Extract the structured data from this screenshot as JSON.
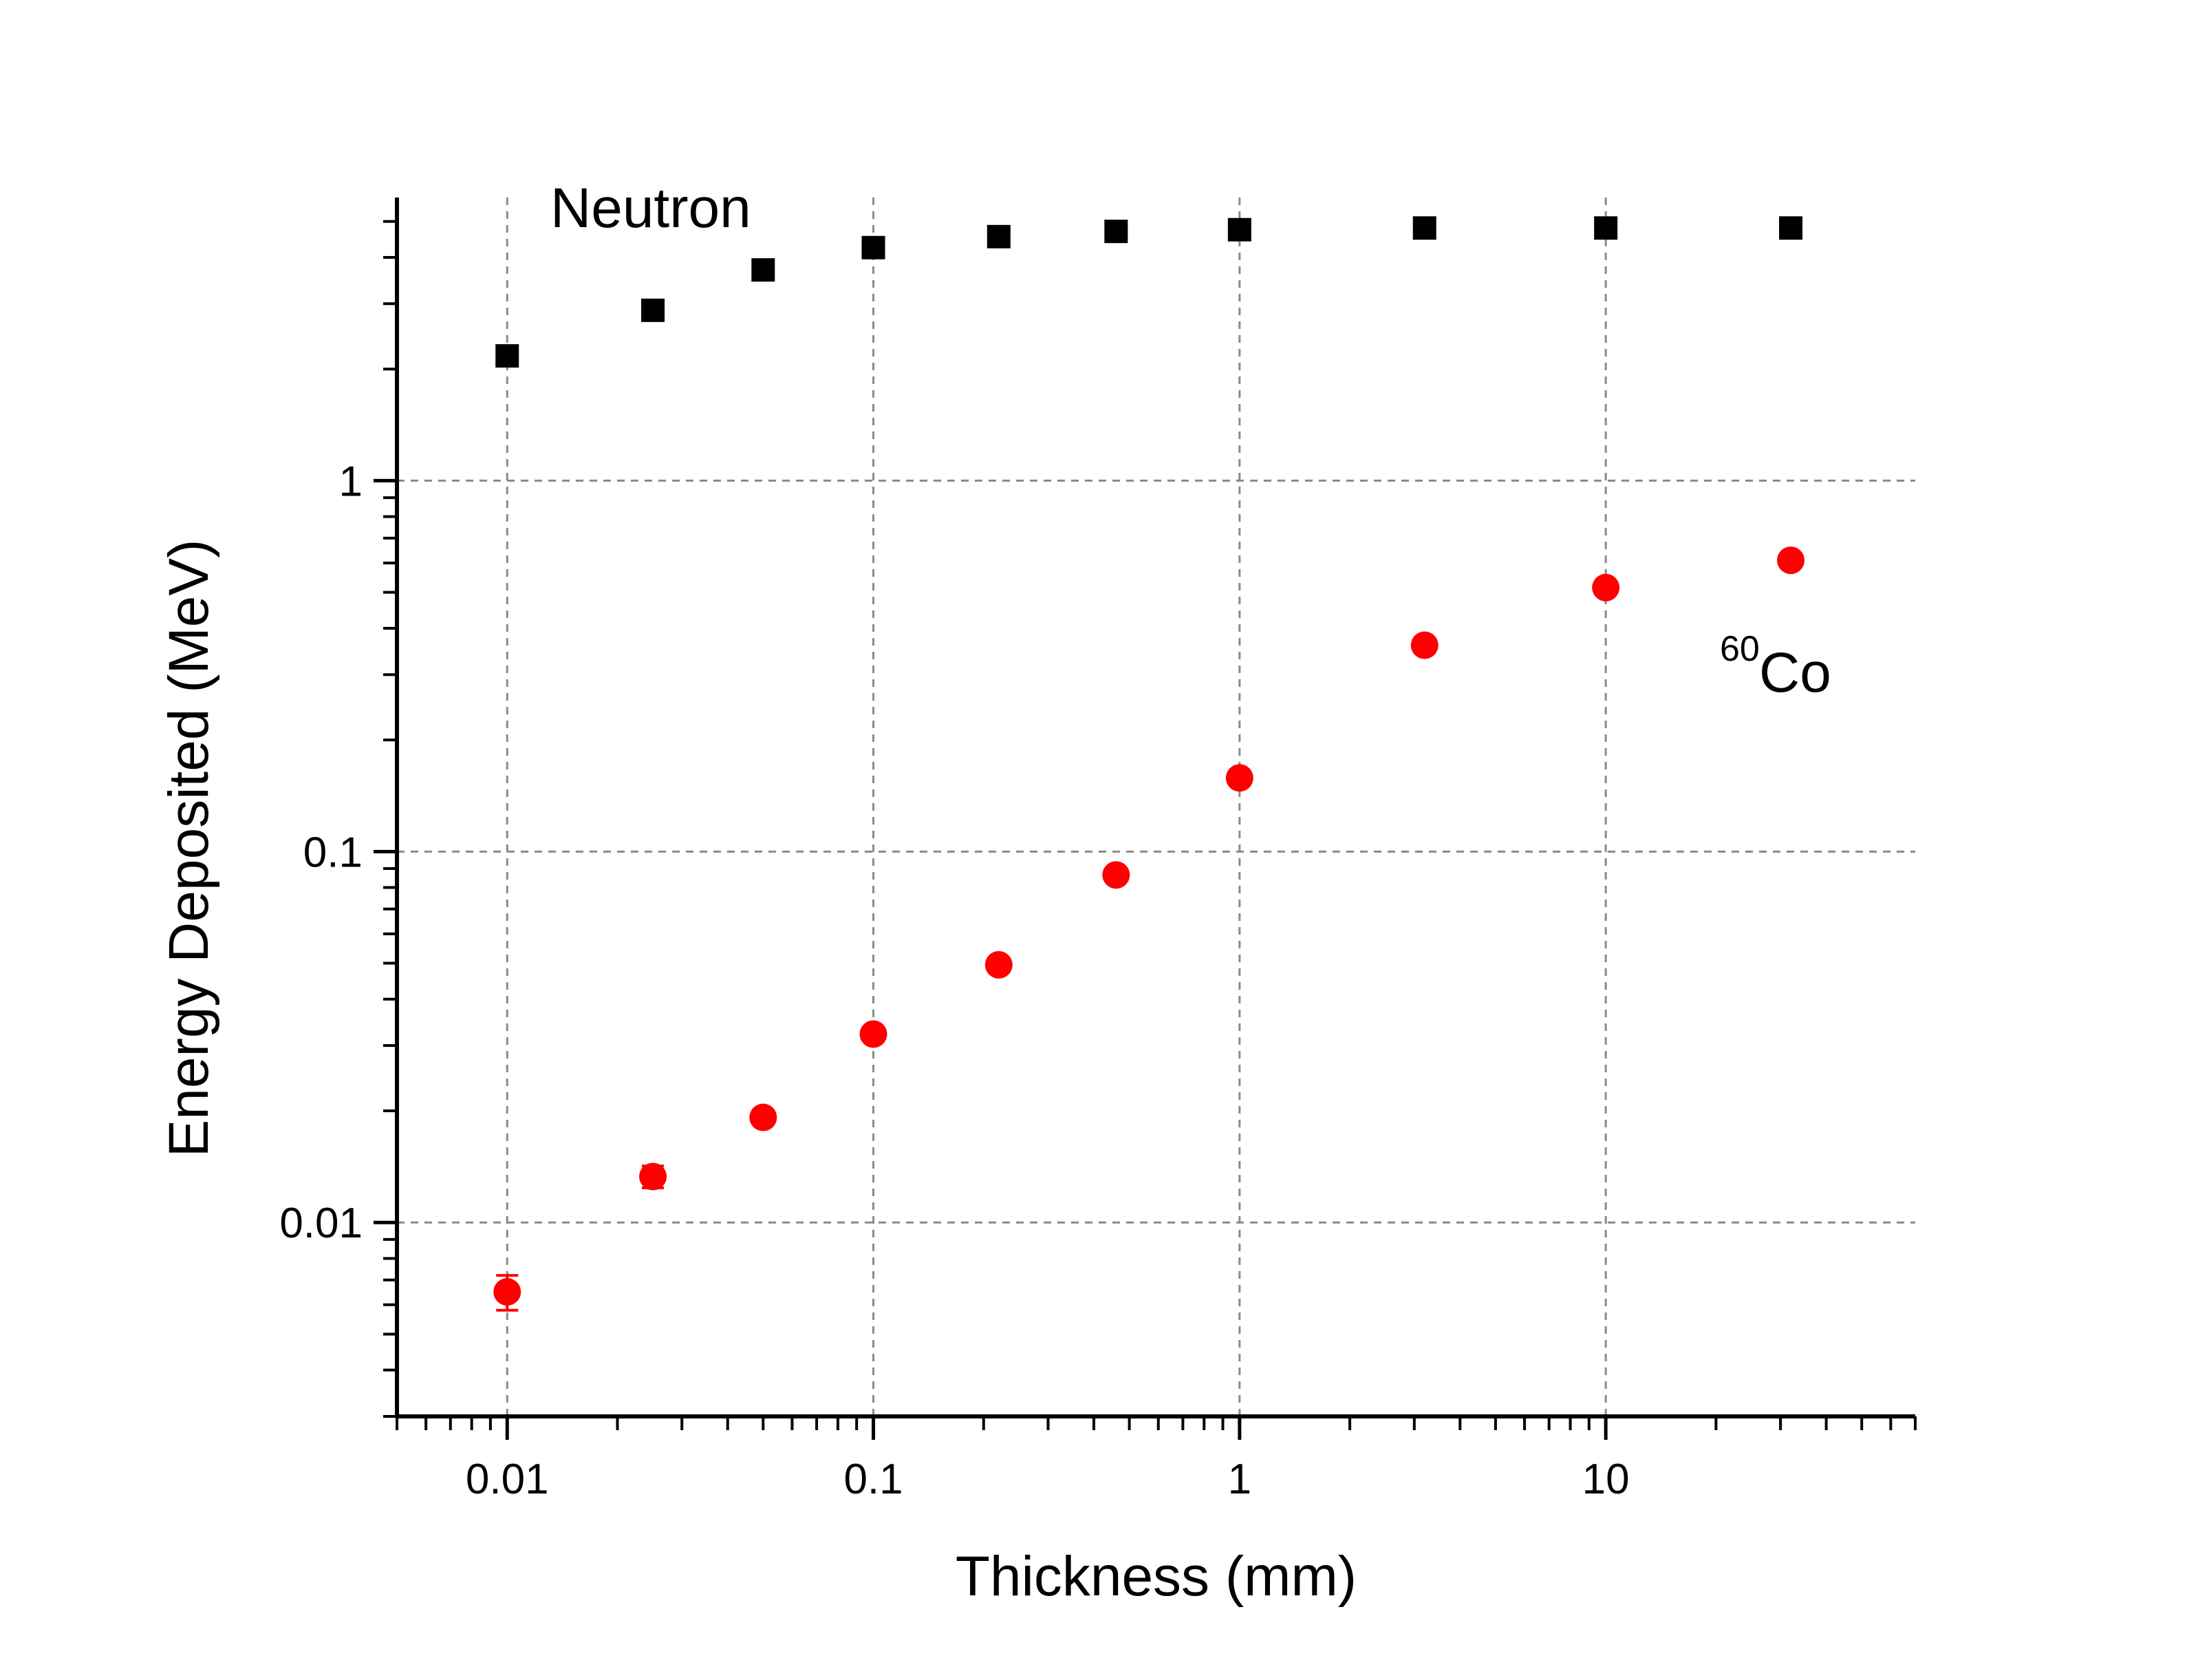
{
  "chart_data": {
    "type": "scatter",
    "title": "",
    "xlabel": "Thickness (mm)",
    "ylabel": "Energy Deposited (MeV)",
    "x_scale": "log",
    "y_scale": "log",
    "xlim": [
      0.005,
      70
    ],
    "ylim": [
      0.003,
      5.8
    ],
    "grid": true,
    "x_ticks": [
      {
        "value": 0.01,
        "label": "0.01"
      },
      {
        "value": 0.1,
        "label": "0.1"
      },
      {
        "value": 1,
        "label": "1"
      },
      {
        "value": 10,
        "label": "10"
      }
    ],
    "y_ticks": [
      {
        "value": 0.01,
        "label": "0.01"
      },
      {
        "value": 0.1,
        "label": "0.1"
      },
      {
        "value": 1,
        "label": "1"
      }
    ],
    "series": [
      {
        "name": "Neutron",
        "marker": "square",
        "color": "#000000",
        "x": [
          0.01,
          0.025,
          0.05,
          0.1,
          0.22,
          0.46,
          1,
          3.2,
          10,
          32
        ],
        "y": [
          2.17,
          2.88,
          3.7,
          4.25,
          4.55,
          4.7,
          4.75,
          4.8,
          4.8,
          4.8
        ],
        "y_err": [
          0,
          0,
          0,
          0,
          0,
          0,
          0,
          0,
          0,
          0
        ]
      },
      {
        "name": "Co",
        "name_sup": "60",
        "marker": "circle",
        "color": "#ff0000",
        "x": [
          0.01,
          0.025,
          0.05,
          0.1,
          0.22,
          0.46,
          1,
          3.2,
          10,
          32
        ],
        "y": [
          0.0065,
          0.0133,
          0.0192,
          0.0322,
          0.0495,
          0.0865,
          0.158,
          0.36,
          0.515,
          0.61
        ],
        "y_err": [
          0.0007,
          0.0009,
          0,
          0,
          0,
          0,
          0,
          0,
          0,
          0
        ]
      }
    ]
  }
}
